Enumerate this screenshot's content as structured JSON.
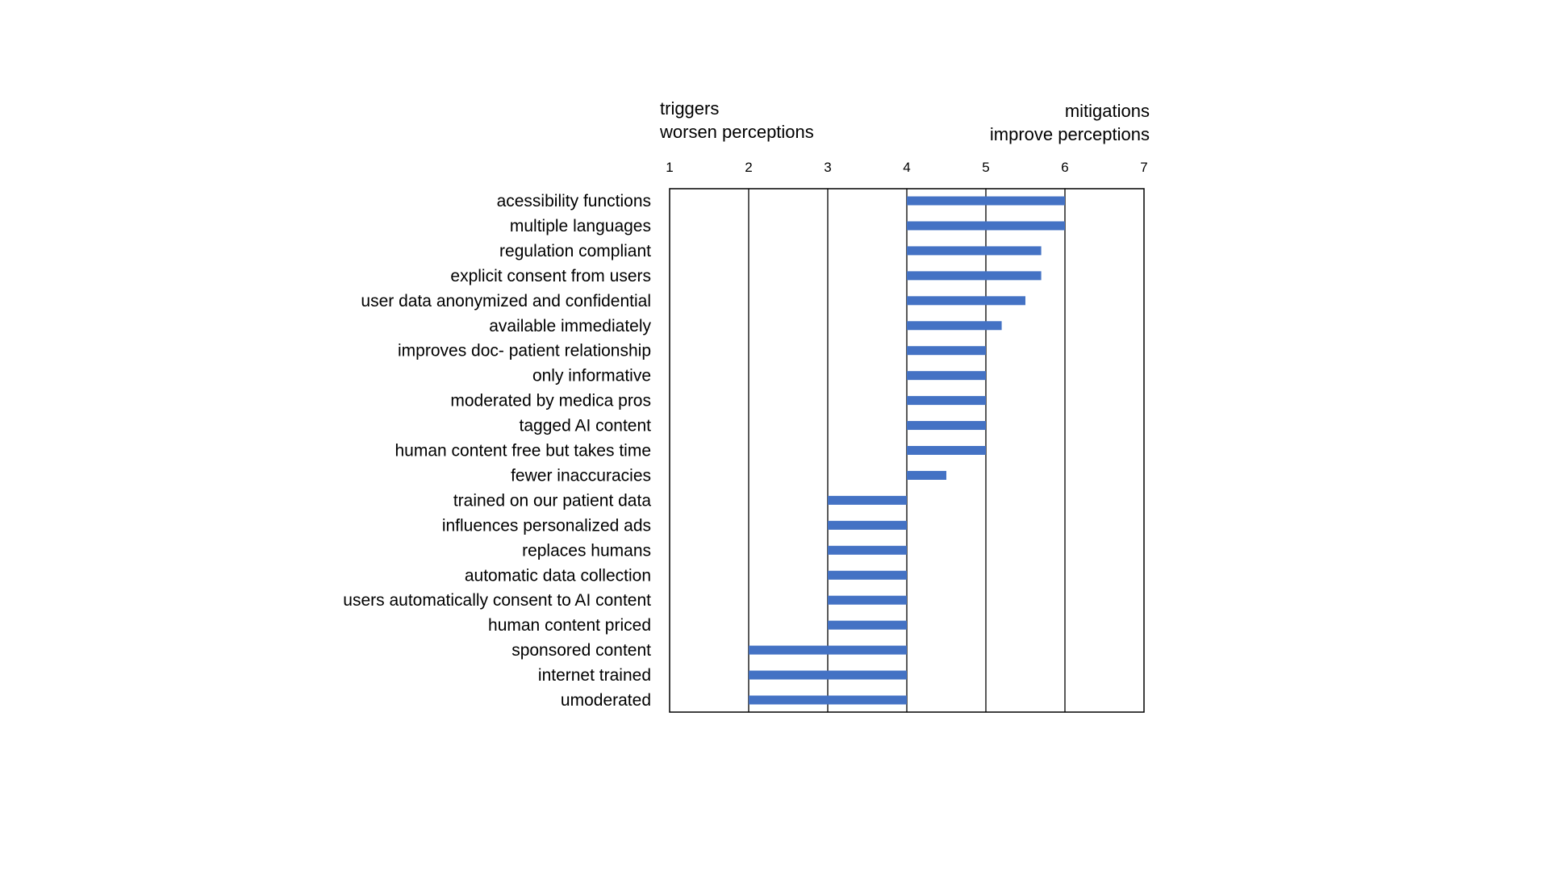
{
  "chart_data": {
    "type": "bar",
    "orientation": "horizontal",
    "baseline": 4,
    "xlim": [
      1,
      7
    ],
    "xticks": [
      "1",
      "2",
      "3",
      "4",
      "5",
      "6",
      "7"
    ],
    "grid": true,
    "legend": "none",
    "annotation_left": [
      "triggers",
      "worsen perceptions"
    ],
    "annotation_right": [
      "mitigations",
      "improve perceptions"
    ],
    "bar_color": "#4472C4",
    "categories": [
      "acessibility functions",
      "multiple languages",
      "regulation compliant",
      "explicit consent from users",
      "user data anonymized and confidential",
      "available immediately",
      "improves doc- patient relationship",
      "only informative",
      "moderated by medica pros",
      "tagged AI content",
      "human content free but takes time",
      "fewer inaccuracies",
      "trained on our patient data",
      "influences personalized ads ",
      "replaces humans",
      "automatic data collection",
      "users automatically consent to AI content",
      "human content priced",
      "sponsored content",
      "internet trained",
      "umoderated"
    ],
    "values": [
      6,
      6,
      5.7,
      5.7,
      5.5,
      5.2,
      5,
      5,
      5,
      5,
      5,
      4.5,
      3,
      3,
      3,
      3,
      3,
      3,
      2,
      2,
      2
    ]
  }
}
